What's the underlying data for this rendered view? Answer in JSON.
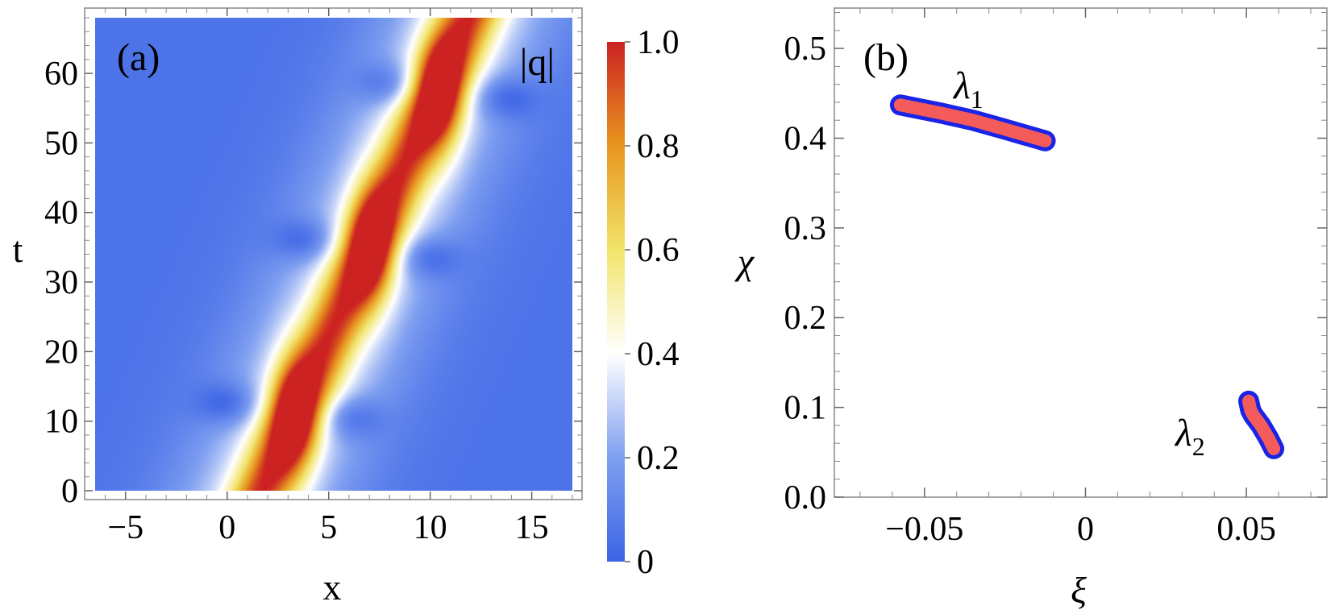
{
  "colors": {
    "low": "#3c64e6",
    "mid": "#ffffff",
    "mid_high": "#f2e46a",
    "high": "#cc2222",
    "curve_fill": "#f55b5b",
    "curve_edge": "#1a24e6"
  },
  "chart_data": [
    {
      "type": "heatmap",
      "panel_label": "(a)",
      "title": "|q|",
      "xlabel": "x",
      "ylabel": "t",
      "xlim": [
        -6.5,
        17
      ],
      "ylim": [
        0,
        68
      ],
      "x_ticks": [
        -5,
        0,
        5,
        10,
        15
      ],
      "x_tick_labels": [
        "−5",
        "0",
        "5",
        "10",
        "15"
      ],
      "y_ticks": [
        0,
        10,
        20,
        30,
        40,
        50,
        60
      ],
      "y_tick_labels": [
        "0",
        "10",
        "20",
        "30",
        "40",
        "50",
        "60"
      ],
      "colorbar": {
        "range": [
          0,
          1
        ],
        "ticks": [
          0,
          0.2,
          0.4,
          0.6,
          0.8,
          1.0
        ],
        "tick_labels": [
          "0",
          "0.2",
          "0.4",
          "0.6",
          "0.8",
          "1.0"
        ]
      },
      "ridge": {
        "description": "bright band of |q| along x ≈ 0.15 t + 1.7",
        "slope_x_per_t": 0.15,
        "x_at_t0": 1.7,
        "peaks": [
          {
            "x": 3.3,
            "t": 11,
            "value": 1.0
          },
          {
            "x": 7.1,
            "t": 35,
            "value": 1.0
          },
          {
            "x": 10.5,
            "t": 57,
            "value": 1.0
          }
        ]
      },
      "dips": [
        {
          "x": 0.1,
          "t": 12.5
        },
        {
          "x": 6.0,
          "t": 10.5
        },
        {
          "x": 3.9,
          "t": 36
        },
        {
          "x": 9.8,
          "t": 33.5
        },
        {
          "x": 8.0,
          "t": 58.5
        },
        {
          "x": 13.6,
          "t": 56.5
        }
      ]
    },
    {
      "type": "line",
      "panel_label": "(b)",
      "xlabel": "ξ",
      "ylabel": "χ",
      "xlim": [
        -0.078,
        0.075
      ],
      "ylim": [
        0,
        0.545
      ],
      "x_ticks": [
        -0.05,
        0,
        0.05
      ],
      "x_tick_labels": [
        "−0.05",
        "0",
        "0.05"
      ],
      "y_ticks": [
        0,
        0.1,
        0.2,
        0.3,
        0.4,
        0.5
      ],
      "y_tick_labels": [
        "0.0",
        "0.1",
        "0.2",
        "0.3",
        "0.4",
        "0.5"
      ],
      "series": [
        {
          "name": "λ",
          "subscript": "1",
          "x": [
            -0.0575,
            -0.045,
            -0.035,
            -0.025,
            -0.0125
          ],
          "y": [
            0.437,
            0.428,
            0.42,
            0.41,
            0.397
          ]
        },
        {
          "name": "λ",
          "subscript": "2",
          "x": [
            0.0507,
            0.0513,
            0.0522,
            0.0545,
            0.0568,
            0.0585
          ],
          "y": [
            0.107,
            0.097,
            0.091,
            0.08,
            0.066,
            0.054
          ]
        }
      ]
    }
  ]
}
